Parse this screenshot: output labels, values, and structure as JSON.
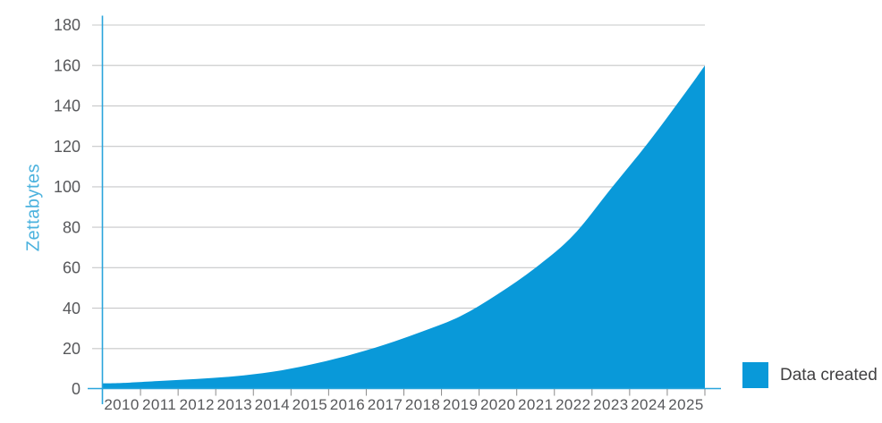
{
  "chart_data": {
    "type": "area",
    "title": "",
    "ylabel": "Zettabytes",
    "xlabel": "",
    "categories": [
      "2010",
      "2011",
      "2012",
      "2013",
      "2014",
      "2015",
      "2016",
      "2017",
      "2018",
      "2019",
      "2020",
      "2021",
      "2022",
      "2023",
      "2024",
      "2025"
    ],
    "series": [
      {
        "name": "Data created",
        "values": [
          3,
          4,
          5,
          6.3,
          8.5,
          12,
          16.5,
          22,
          28.5,
          36,
          47,
          60,
          76,
          99,
          122,
          147
        ]
      }
    ],
    "curve_start_value": 2.8,
    "curve_end_value": 160,
    "ylim": [
      0,
      180
    ],
    "yticks": [
      0,
      20,
      40,
      60,
      80,
      100,
      120,
      140,
      160,
      180
    ],
    "grid": "horizontal",
    "legend_position": "bottom-right",
    "legend": {
      "label": "Data created"
    },
    "colors": {
      "area_fill": "#0999d9",
      "axis_line": "#2aa5dc",
      "gridline": "#c7c8c9",
      "tick_mark": "#8b8b8b",
      "axis_text": "#57585b",
      "ylabel_text": "#4bb2de",
      "legend_text": "#414042"
    }
  }
}
